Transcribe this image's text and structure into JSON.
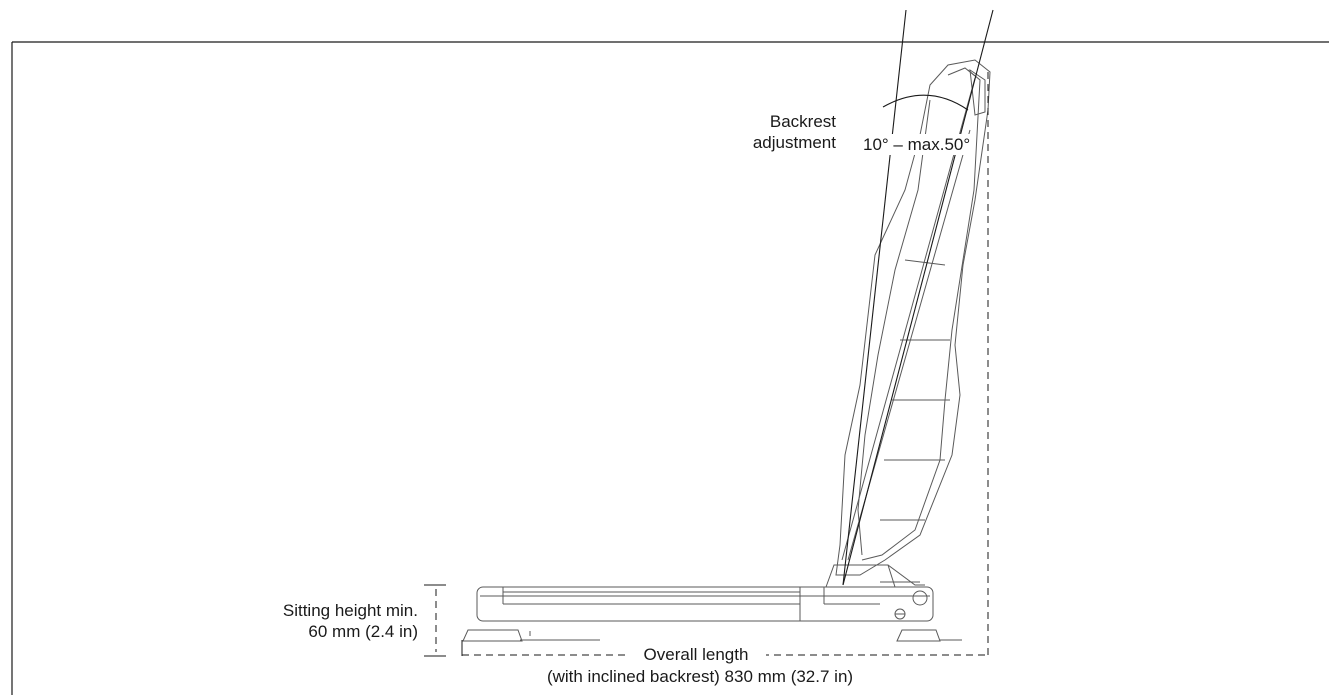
{
  "annotations": {
    "backrest_adjustment": {
      "label_line1": "Backrest",
      "label_line2": "adjustment",
      "angle_range": "10° – max.50°"
    },
    "sitting_height": {
      "label_line1": "Sitting height min.",
      "label_line2": "60 mm (2.4 in)"
    },
    "overall_length": {
      "label_line1": "Overall length",
      "label_line2": "(with inclined backrest) 830 mm (32.7 in)"
    }
  },
  "colors": {
    "line": "#1a1a1a",
    "outline": "#5a5a5a",
    "background": "#ffffff"
  }
}
